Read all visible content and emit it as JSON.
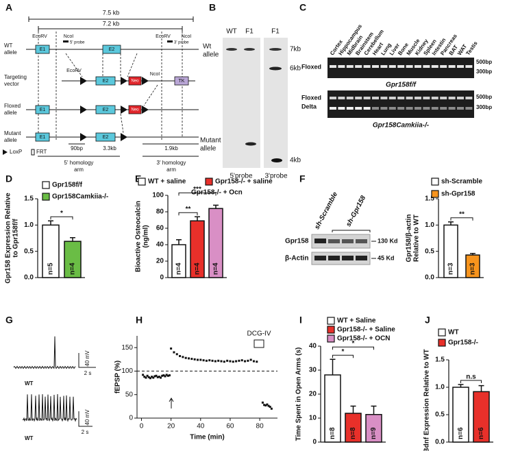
{
  "figure": {
    "A": {
      "letter": "A",
      "len_outer": "7.5 kb",
      "len_inner": "7.2 kb",
      "ecorv_1": "EcoRV",
      "ncoi_1": "NcoI",
      "ecorv_2": "EcoRV",
      "ncoi_2": "NcoI",
      "probe5": "5' probe",
      "probe3": "3' probe",
      "wt": [
        "WT",
        "allele"
      ],
      "targeting": [
        "Targeting",
        "vector"
      ],
      "floxed": [
        "Floxed",
        "allele"
      ],
      "mutant": [
        "Mutant",
        "allele"
      ],
      "e1": [
        "E1",
        "E1",
        "E1"
      ],
      "e2": [
        "E2",
        "E2",
        "E2",
        "E2"
      ],
      "ecorv_3": "EcoRV",
      "ncoi_3": "NcoI",
      "neo": [
        "Neo",
        "Neo"
      ],
      "tk": "TK",
      "loxp": "LoxP",
      "frt": "FRT",
      "len_90": "90bp",
      "len_33": "3.3kb",
      "len_19": "1.9kb",
      "arm5": [
        "5' homology",
        "arm"
      ],
      "arm3": [
        "3' homology",
        "arm"
      ]
    },
    "B": {
      "letter": "B",
      "lanes": [
        "WT",
        "F1",
        "F1"
      ],
      "wt": [
        "Wt",
        "allele"
      ],
      "mutant": [
        "Mutant",
        "allele"
      ],
      "sizes": [
        "7kb",
        "6kb",
        "4kb"
      ],
      "probes": [
        "5'probe",
        "3'probe"
      ]
    },
    "C": {
      "letter": "C",
      "tissues": [
        "Cortex",
        "Hippocampus",
        "Midbrain",
        "Brainstem",
        "Cerebellum",
        "Heart",
        "Lung",
        "Liver",
        "Bone",
        "Muscle",
        "Kidney",
        "Spleen",
        "Intestin",
        "Pancreas",
        "BAT",
        "WAT",
        "Testis"
      ],
      "gel1": {
        "rows": [
          "Floxed"
        ],
        "sizes": [
          "500bp",
          "300bp"
        ],
        "genotype": "Gpr158f/f"
      },
      "gel2": {
        "rows": [
          "Floxed",
          "Delta"
        ],
        "sizes": [
          "500bp",
          "300bp"
        ],
        "genotype": "Gpr158Camkiia-/-"
      }
    },
    "F_blot": {
      "letter": "F",
      "groups": [
        "sh-Scramble",
        "sh-Gpr158"
      ],
      "proteins": [
        "Gpr158",
        "β-Actin"
      ],
      "sizes": [
        "130 Kd",
        "45 Kd"
      ]
    },
    "G": {
      "letter": "G",
      "traces": [
        {
          "genotype": "WT",
          "mv": "40 mV",
          "s": "2 s"
        },
        {
          "genotype": "WT",
          "mv": "40 mV",
          "s": "2 s"
        }
      ]
    }
  },
  "chart_data": [
    {
      "type": "bar",
      "letter": "D",
      "ylabel": [
        "Gpr158 Expression Relative",
        "to Gpr158f/f"
      ],
      "ylim": [
        0,
        1.5
      ],
      "yticks": [
        {
          "value": 0,
          "label": "0.0"
        },
        0.5,
        {
          "value": 1,
          "label": "1.0"
        },
        1.5
      ],
      "series": [
        {
          "name": "Gpr158f/f",
          "color": "#ffffff",
          "values": [
            1.0
          ],
          "errors": [
            0.08
          ],
          "n": "n=5"
        },
        {
          "name": "Gpr158Camkiia-/-",
          "color": "#6abd45",
          "values": [
            0.69
          ],
          "errors": [
            0.07
          ],
          "n": "n=4"
        }
      ],
      "significance": [
        {
          "label": "*",
          "groups": [
            0,
            1
          ]
        }
      ]
    },
    {
      "type": "bar",
      "letter": "E",
      "ylabel": [
        "Bioactive Osteocalcin",
        "(ng/ml)"
      ],
      "ylim": [
        0,
        100
      ],
      "yticks": [
        0,
        20,
        40,
        60,
        80,
        100
      ],
      "series": [
        {
          "name": "WT + saline",
          "color": "#ffffff",
          "values": [
            40
          ],
          "errors": [
            6
          ],
          "n": "n=4"
        },
        {
          "name": "Gpr158-/- + saline",
          "color": "#e8302a",
          "values": [
            69
          ],
          "errors": [
            5
          ],
          "n": "n=4"
        },
        {
          "name": "Gpr158-/- + Ocn",
          "color": "#d98fc5",
          "values": [
            84
          ],
          "errors": [
            4
          ],
          "n": "n=4"
        }
      ],
      "significance": [
        {
          "label": "**",
          "groups": [
            0,
            1
          ]
        },
        {
          "label": "***",
          "groups": [
            0,
            2
          ]
        }
      ]
    },
    {
      "type": "bar",
      "ylabel": [
        "Gpr158/β-actin",
        "Relative to WT"
      ],
      "ylim": [
        0,
        1.5
      ],
      "yticks": [
        {
          "value": 0,
          "label": "0.0"
        },
        0.5,
        {
          "value": 1,
          "label": "1.0"
        },
        1.5
      ],
      "series": [
        {
          "name": "sh-Scramble",
          "color": "#ffffff",
          "values": [
            1.0
          ],
          "errors": [
            0.06
          ],
          "n": "n=3"
        },
        {
          "name": "sh-Gpr158",
          "color": "#f7941d",
          "values": [
            0.43
          ],
          "errors": [
            0.03
          ],
          "n": "n=3"
        }
      ],
      "significance": [
        {
          "label": "**",
          "groups": [
            0,
            1
          ]
        }
      ]
    },
    {
      "type": "scatter",
      "letter": "H",
      "xlabel": "Time (min)",
      "ylabel": "fEPSP (%)",
      "annotation": "DCG-IV",
      "xlim": [
        -3,
        92
      ],
      "ylim": [
        0,
        175
      ],
      "xticks": [
        0,
        20,
        40,
        60,
        80
      ],
      "yticks": [
        0,
        50,
        100,
        150
      ],
      "reference_line": 100,
      "color": "#111111",
      "x": [
        1,
        2,
        3,
        4,
        5,
        6,
        7,
        8,
        9,
        10,
        11,
        12,
        13,
        14,
        15,
        16,
        17,
        18,
        19,
        20,
        22,
        24,
        26,
        28,
        30,
        32,
        34,
        36,
        38,
        40,
        42,
        44,
        46,
        48,
        50,
        52,
        54,
        56,
        58,
        60,
        62,
        64,
        66,
        68,
        70,
        72,
        74,
        76,
        78,
        82,
        83,
        84,
        85,
        86,
        87,
        88
      ],
      "values": [
        92,
        88,
        86,
        90,
        87,
        85,
        88,
        86,
        89,
        90,
        87,
        88,
        86,
        90,
        91,
        89,
        92,
        90,
        91,
        148,
        140,
        136,
        132,
        130,
        128,
        127,
        126,
        125,
        124,
        124,
        123,
        122,
        123,
        122,
        121,
        122,
        121,
        120,
        122,
        121,
        120,
        121,
        122,
        123,
        121,
        122,
        124,
        121,
        120,
        33,
        28,
        27,
        29,
        26,
        24,
        20
      ]
    },
    {
      "type": "bar",
      "letter": "I",
      "ylabel": [
        "Time Spent in Open Arms (s)"
      ],
      "ylim": [
        0,
        40
      ],
      "yticks": [
        0,
        10,
        20,
        30,
        40
      ],
      "series": [
        {
          "name": "WT + Saline",
          "color": "#ffffff",
          "values": [
            28
          ],
          "errors": [
            6.5
          ],
          "n": "n=8"
        },
        {
          "name": "Gpr158-/- + Saline",
          "color": "#e8302a",
          "values": [
            12
          ],
          "errors": [
            3
          ],
          "n": "n=8"
        },
        {
          "name": "Gpr158-/- + OCN",
          "color": "#d98fc5",
          "values": [
            11.5
          ],
          "errors": [
            3.5
          ],
          "n": "n=9"
        }
      ],
      "significance": [
        {
          "label": "*",
          "groups": [
            0,
            1
          ]
        },
        {
          "label": "*",
          "groups": [
            0,
            2
          ]
        }
      ]
    },
    {
      "type": "bar",
      "letter": "J",
      "ylabel": [
        "Bdnf Expression Relative to WT"
      ],
      "ylim": [
        0,
        1.5
      ],
      "yticks": [
        {
          "value": 0,
          "label": "0.0"
        },
        0.5,
        {
          "value": 1,
          "label": "1.0"
        },
        1.5
      ],
      "series": [
        {
          "name": "WT",
          "color": "#ffffff",
          "values": [
            1.0
          ],
          "errors": [
            0.05
          ],
          "n": "n=6"
        },
        {
          "name": "Gpr158-/-",
          "color": "#e8302a",
          "values": [
            0.92
          ],
          "errors": [
            0.11
          ],
          "n": "n=6"
        }
      ],
      "significance": [
        {
          "label": "n.s",
          "groups": [
            0,
            1
          ]
        }
      ]
    }
  ]
}
